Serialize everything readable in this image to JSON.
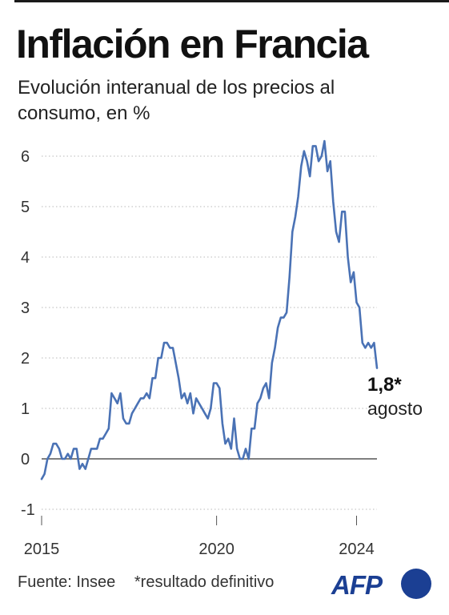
{
  "title": "Inflación en Francia",
  "subtitle": "Evolución interanual de los precios al consumo, en %",
  "footer": {
    "source": "Fuente: Insee",
    "note": "*resultado definitivo"
  },
  "logo": {
    "text": "AFP",
    "color": "#1b3f93"
  },
  "colors": {
    "line": "#4a72b5",
    "grid": "#b8b8b8",
    "zero_line": "#333333"
  },
  "chart_data": {
    "type": "line",
    "title": "Inflación en Francia",
    "subtitle": "Evolución interanual de los precios al consumo, en %",
    "xlabel": "",
    "ylabel": "",
    "ylim": [
      -1,
      6.5
    ],
    "xlim": [
      "2015-01",
      "2024-08"
    ],
    "y_ticks": [
      -1,
      0,
      1,
      2,
      3,
      4,
      5,
      6
    ],
    "x_ticks": [
      {
        "value": "2015-01",
        "label": "2015"
      },
      {
        "value": "2020-01",
        "label": "2020"
      },
      {
        "value": "2024-01",
        "label": "2024"
      }
    ],
    "grid": "horizontal dotted",
    "series": [
      {
        "start": "2015-01",
        "frequency": "monthly",
        "values": [
          -0.4,
          -0.3,
          0.0,
          0.1,
          0.3,
          0.3,
          0.2,
          0.0,
          0.0,
          0.1,
          0.0,
          0.2,
          0.2,
          -0.2,
          -0.1,
          -0.2,
          0.0,
          0.2,
          0.2,
          0.2,
          0.4,
          0.4,
          0.5,
          0.6,
          1.3,
          1.2,
          1.1,
          1.3,
          0.8,
          0.7,
          0.7,
          0.9,
          1.0,
          1.1,
          1.2,
          1.2,
          1.3,
          1.2,
          1.6,
          1.6,
          2.0,
          2.0,
          2.3,
          2.3,
          2.2,
          2.2,
          1.9,
          1.6,
          1.2,
          1.3,
          1.1,
          1.3,
          0.9,
          1.2,
          1.1,
          1.0,
          0.9,
          0.8,
          1.0,
          1.5,
          1.5,
          1.4,
          0.7,
          0.3,
          0.4,
          0.2,
          0.8,
          0.2,
          0.0,
          0.0,
          0.2,
          0.0,
          0.6,
          0.6,
          1.1,
          1.2,
          1.4,
          1.5,
          1.2,
          1.9,
          2.2,
          2.6,
          2.8,
          2.8,
          2.9,
          3.6,
          4.5,
          4.8,
          5.2,
          5.8,
          6.1,
          5.9,
          5.6,
          6.2,
          6.2,
          5.9,
          6.0,
          6.3,
          5.7,
          5.9,
          5.1,
          4.5,
          4.3,
          4.9,
          4.9,
          4.0,
          3.5,
          3.7,
          3.1,
          3.0,
          2.3,
          2.2,
          2.3,
          2.2,
          2.3,
          1.8
        ]
      }
    ],
    "annotation": {
      "value": "1,8*",
      "label": "agosto"
    }
  }
}
